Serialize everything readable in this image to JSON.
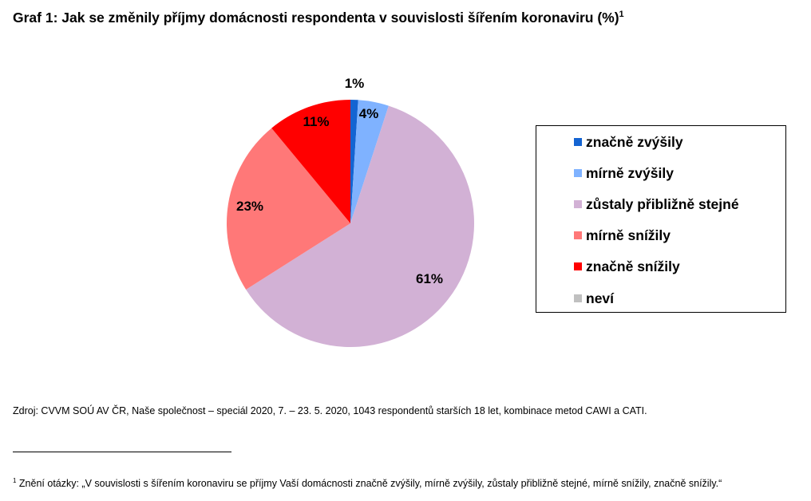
{
  "title": {
    "text": "Graf 1: Jak se změnily příjmy domácnosti respondenta v souvislosti šířením koronaviru (%)",
    "footnote_mark": "1"
  },
  "chart_data": {
    "type": "pie",
    "categories": [
      "značně zvýšily",
      "mírně zvýšily",
      "zůstaly přibližně stejné",
      "mírně snížily",
      "značně snížily",
      "neví"
    ],
    "values": [
      1,
      4,
      61,
      23,
      11,
      0
    ],
    "data_labels": [
      "1%",
      "4%",
      "61%",
      "23%",
      "11%",
      ""
    ],
    "colors": [
      "#1464d2",
      "#7fb2ff",
      "#d2b1d5",
      "#ff7878",
      "#ff0000",
      "#c0c0c0"
    ],
    "legend_position": "right"
  },
  "legend": {
    "items": [
      {
        "label": "značně zvýšily",
        "color": "#1464d2"
      },
      {
        "label": "mírně zvýšily",
        "color": "#7fb2ff"
      },
      {
        "label": "zůstaly přibližně stejné",
        "color": "#d2b1d5"
      },
      {
        "label": "mírně snížily",
        "color": "#ff7878"
      },
      {
        "label": "značně snížily",
        "color": "#ff0000"
      },
      {
        "label": "neví",
        "color": "#c0c0c0"
      }
    ]
  },
  "source": {
    "text": "Zdroj: CVVM SOÚ AV ČR, Naše společnost – speciál 2020, 7. – 23. 5. 2020, 1043 respondentů starších 18 let, kombinace metod CAWI a CATI."
  },
  "footnote": {
    "mark": "1",
    "text": " Znění otázky: „V souvislosti s šířením koronaviru se příjmy Vaší domácnosti značně zvýšily, mírně zvýšily, zůstaly přibližně stejné, mírně snížily, značně snížily.“"
  }
}
